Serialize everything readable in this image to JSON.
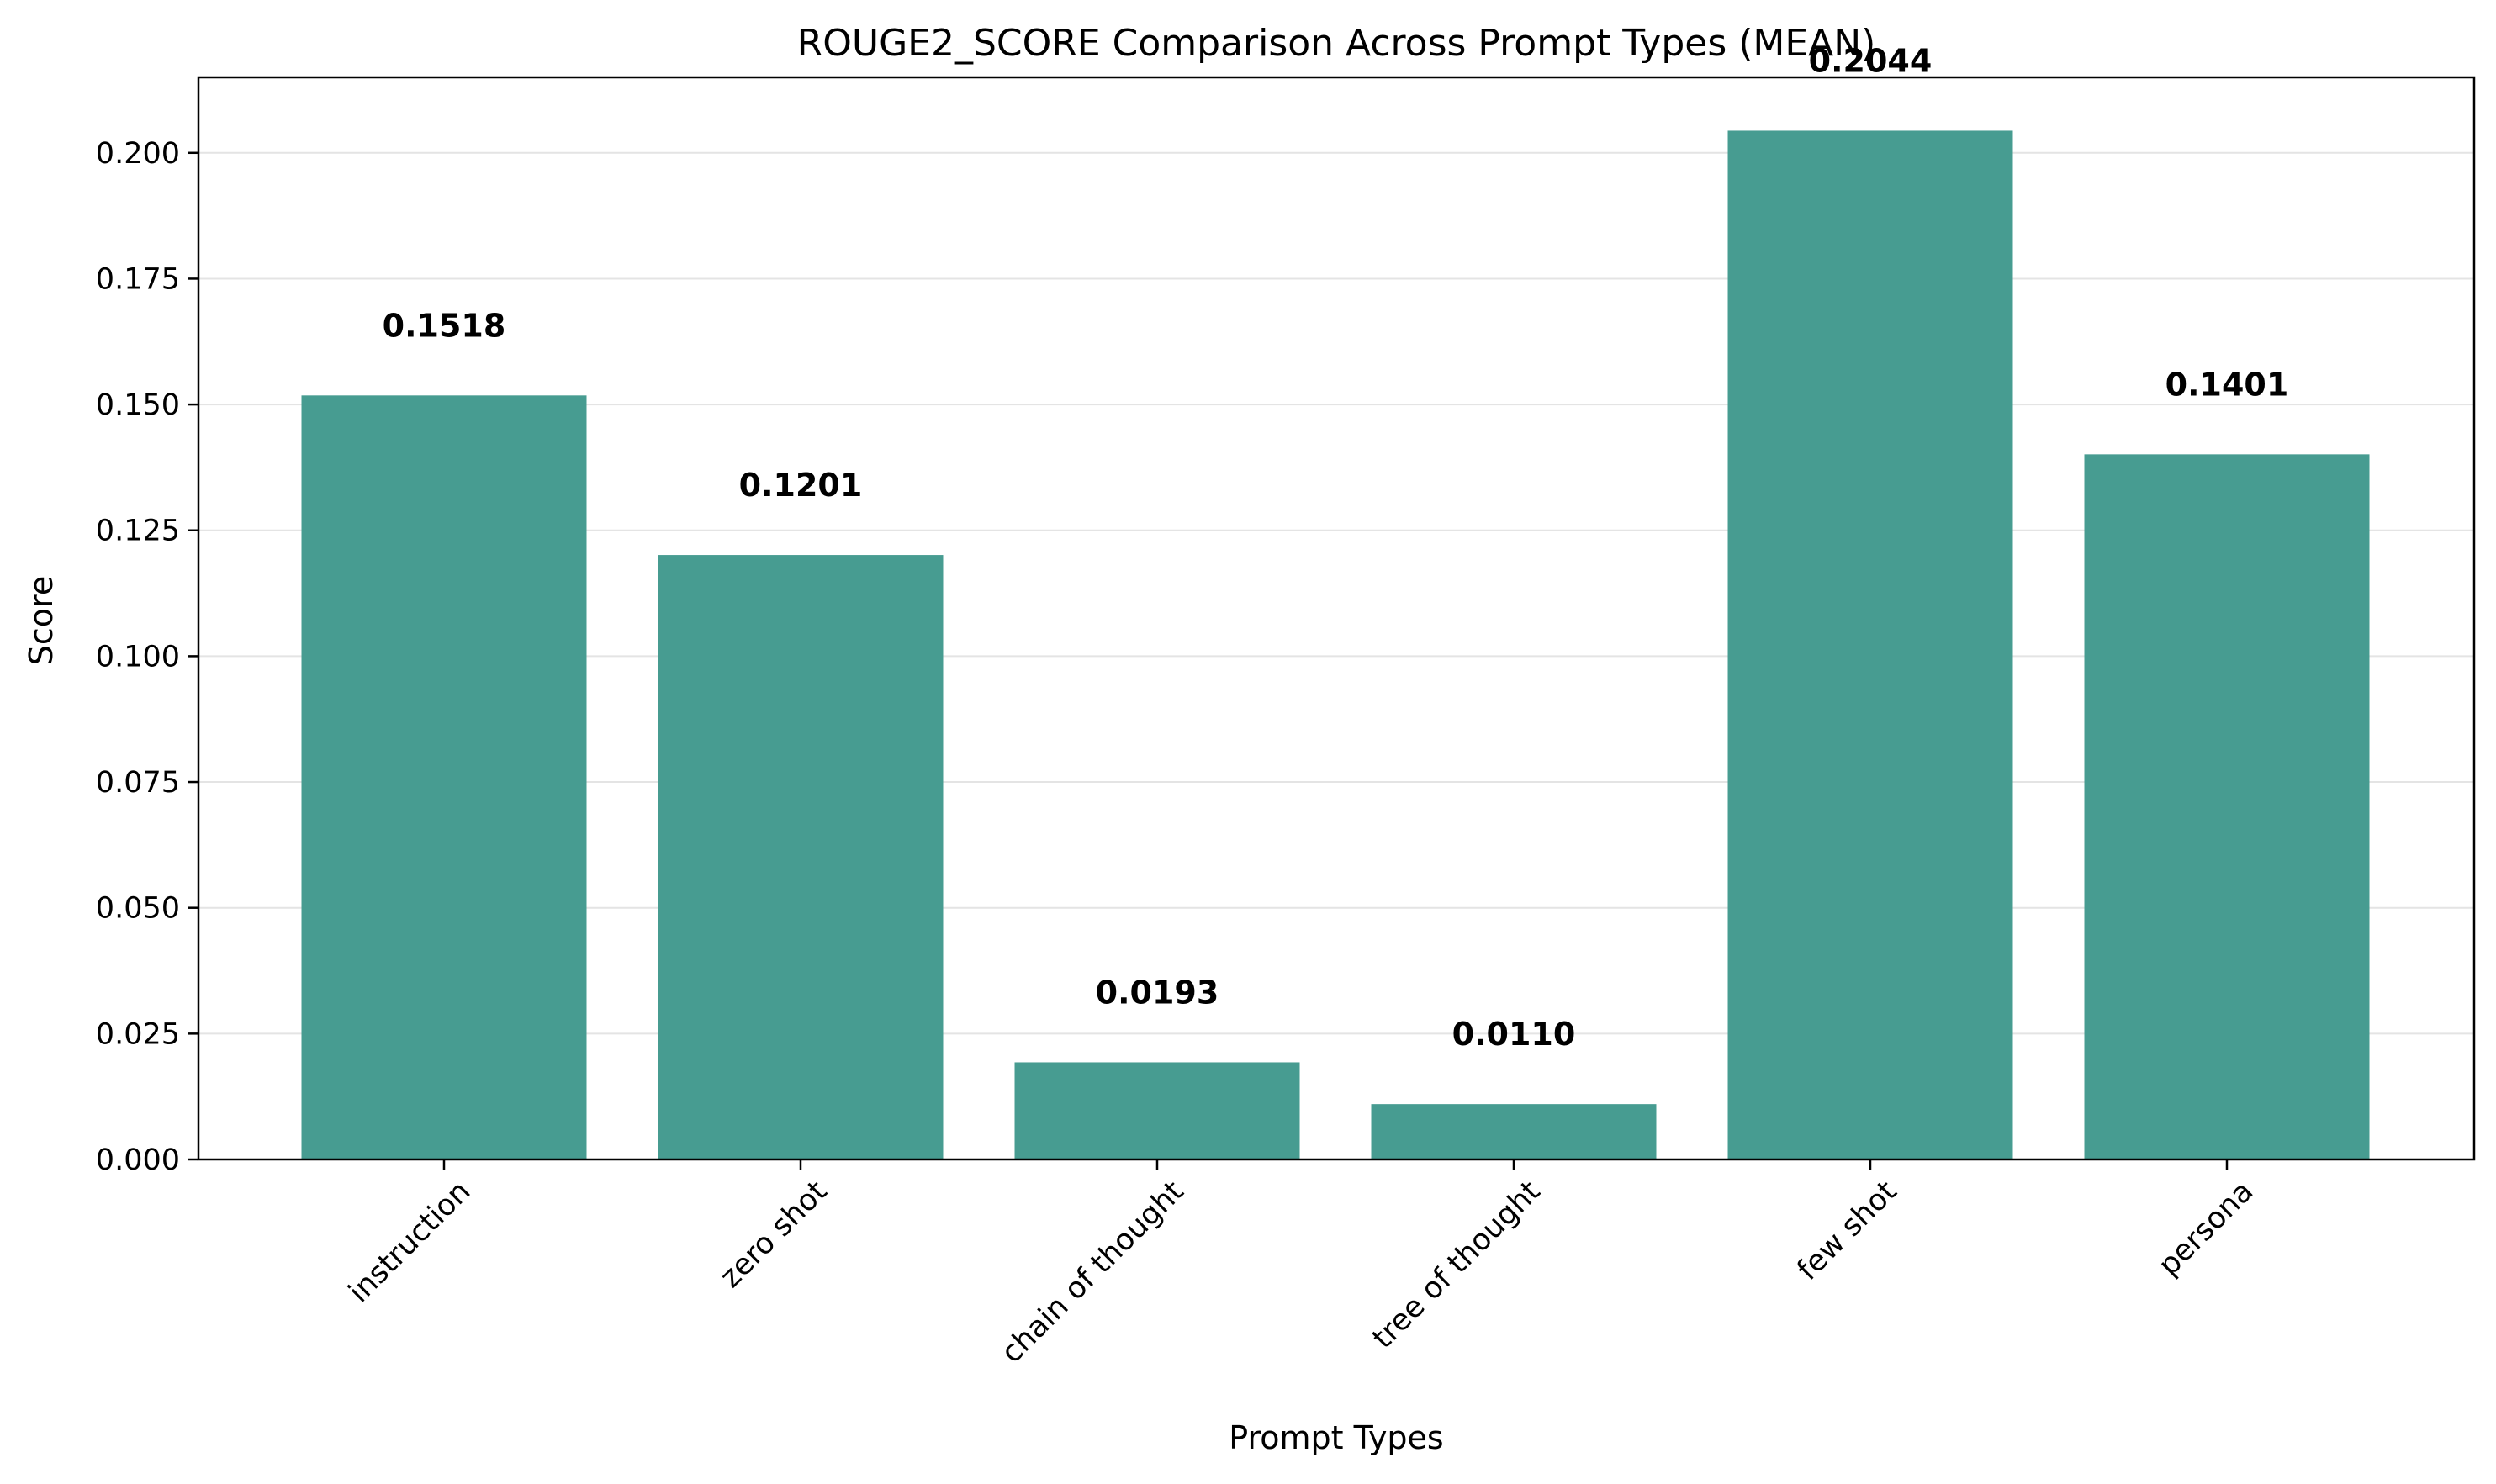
{
  "chart_data": {
    "type": "bar",
    "title": "ROUGE2_SCORE Comparison Across Prompt Types (MEAN)",
    "xlabel": "Prompt Types",
    "ylabel": "Score",
    "categories": [
      "instruction",
      "zero shot",
      "chain of thought",
      "tree of thought",
      "few shot",
      "persona"
    ],
    "values": [
      0.1518,
      0.1201,
      0.0193,
      0.011,
      0.2044,
      0.1401
    ],
    "value_labels": [
      "0.1518",
      "0.1201",
      "0.0193",
      "0.0110",
      "0.2044",
      "0.1401"
    ],
    "ylim": [
      0,
      0.215
    ],
    "yticks": [
      0.0,
      0.025,
      0.05,
      0.075,
      0.1,
      0.125,
      0.15,
      0.175,
      0.2
    ],
    "ytick_labels": [
      "0.000",
      "0.025",
      "0.050",
      "0.075",
      "0.100",
      "0.125",
      "0.150",
      "0.175",
      "0.200"
    ],
    "bar_color": "#479c91",
    "grid": "y",
    "legend": "none"
  }
}
